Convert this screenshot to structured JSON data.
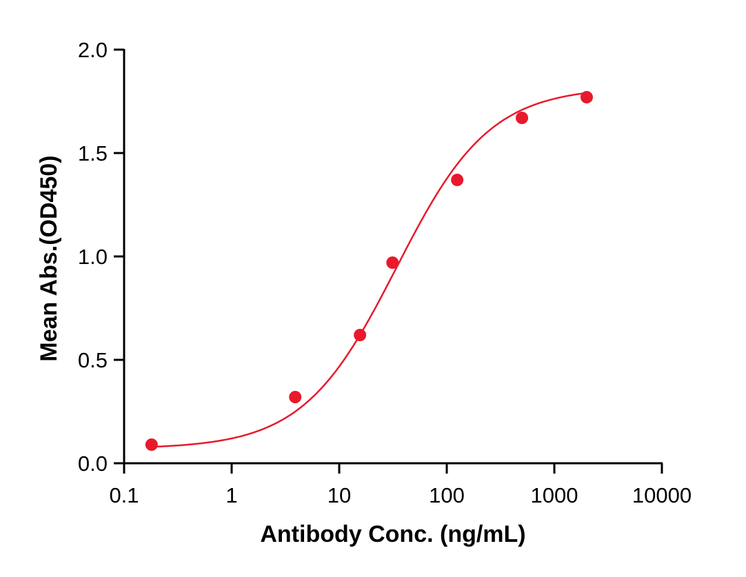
{
  "chart_data": {
    "type": "scatter",
    "title": "",
    "xlabel": "Antibody Conc. (ng/mL)",
    "ylabel": "Mean Abs.(OD450)",
    "xscale": "log",
    "xlim": [
      0.1,
      10000
    ],
    "ylim": [
      0.0,
      2.0
    ],
    "x_ticks": [
      "0.1",
      "1",
      "10",
      "100",
      "1000",
      "10000"
    ],
    "y_ticks": [
      "0.0",
      "0.5",
      "1.0",
      "1.5",
      "2.0"
    ],
    "grid": false,
    "legend": null,
    "series": [
      {
        "name": "Mean Abs.",
        "color": "#e8192c",
        "marker": "circle",
        "fit": "4-parameter logistic curve",
        "x": [
          0.18,
          3.9,
          15.6,
          31.3,
          125,
          500,
          2000
        ],
        "y": [
          0.09,
          0.32,
          0.62,
          0.97,
          1.37,
          1.67,
          1.77
        ]
      }
    ]
  }
}
